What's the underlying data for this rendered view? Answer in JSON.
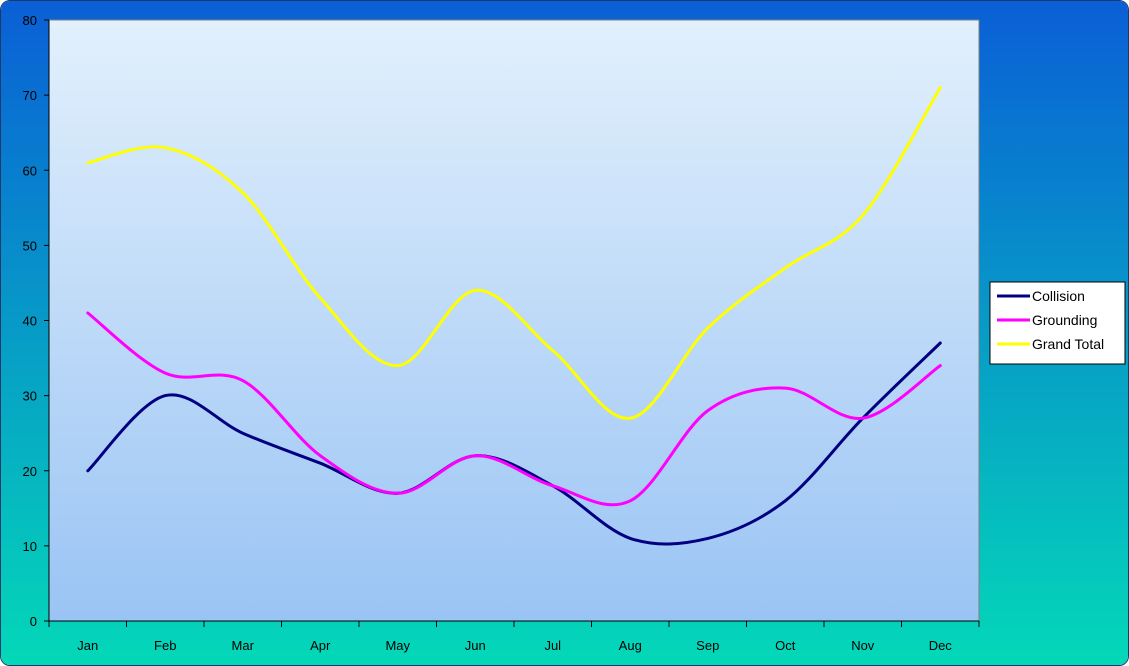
{
  "chart_data": {
    "type": "line",
    "title": "",
    "xlabel": "",
    "ylabel": "",
    "categories": [
      "Jan",
      "Feb",
      "Mar",
      "Apr",
      "May",
      "Jun",
      "Jul",
      "Aug",
      "Sep",
      "Oct",
      "Nov",
      "Dec"
    ],
    "ylim": [
      0,
      80
    ],
    "yticks": [
      0,
      10,
      20,
      30,
      40,
      50,
      60,
      70,
      80
    ],
    "grid": false,
    "smooth": true,
    "legend_position": "right",
    "series": [
      {
        "name": "Collision",
        "color": "#000080",
        "values": [
          20,
          30,
          25,
          21,
          17,
          22,
          18,
          11,
          11,
          16,
          27,
          37
        ]
      },
      {
        "name": "Grounding",
        "color": "#ff00ff",
        "values": [
          41,
          33,
          32,
          22,
          17,
          22,
          18,
          16,
          28,
          31,
          27,
          34
        ]
      },
      {
        "name": "Grand Total",
        "color": "#ffff00",
        "values": [
          61,
          63,
          57,
          43,
          34,
          44,
          36,
          27,
          39,
          47,
          54,
          71
        ]
      }
    ]
  },
  "colors": {
    "page_bg_top": "#0a5fd6",
    "page_bg_bottom": "#04d8b8",
    "plot_bg_top": "#e2f0fc",
    "plot_bg_bottom": "#9ac4f4",
    "legend_bg": "#ffffff"
  }
}
